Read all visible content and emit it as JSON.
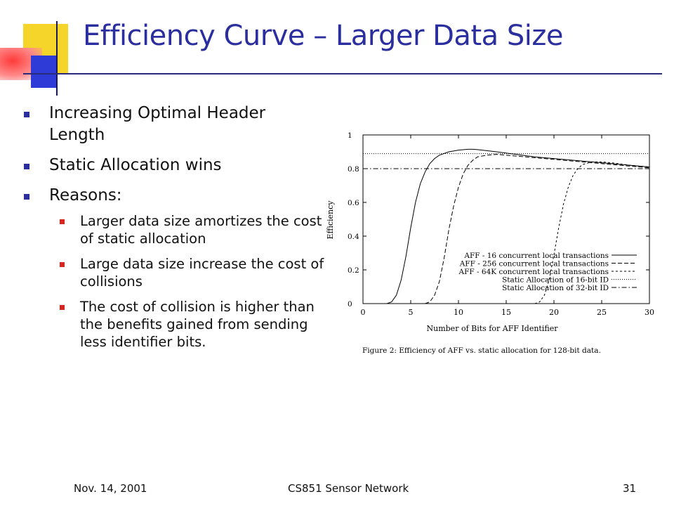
{
  "slide": {
    "title": "Efficiency Curve – Larger Data Size",
    "bullets": [
      {
        "text": "Increasing Optimal Header Length"
      },
      {
        "text": "Static Allocation wins"
      },
      {
        "text": "Reasons:",
        "sub": [
          "Larger data size amortizes the cost of static allocation",
          "Large data size increase the cost of collisions",
          "The cost of collision is higher than the benefits gained from sending less identifier bits."
        ]
      }
    ],
    "footer": {
      "date": "Nov. 14, 2001",
      "center": "CS851 Sensor Network",
      "page": "31"
    }
  },
  "chart_data": {
    "type": "line",
    "title": "",
    "caption": "Figure 2: Efficiency of AFF vs. static allocation for 128-bit data.",
    "xlabel": "Number of Bits for AFF Identifier",
    "ylabel": "Efficiency",
    "xlim": [
      0,
      30
    ],
    "ylim": [
      0,
      1
    ],
    "xticks": [
      0,
      5,
      10,
      15,
      20,
      25,
      30
    ],
    "yticks": [
      0,
      0.2,
      0.4,
      0.6,
      0.8,
      1
    ],
    "ytick_labels": [
      "0",
      "0.2",
      "0.4",
      "0.6",
      "0.8",
      "1"
    ],
    "grid": false,
    "legend_position": "bottom-right",
    "series": [
      {
        "name": "AFF - 16 concurrent local transactions",
        "style": "solid",
        "x": [
          2.5,
          3,
          3.5,
          4,
          4.5,
          5,
          5.5,
          6,
          6.5,
          7,
          7.5,
          8,
          9,
          10,
          11,
          11.5,
          12,
          14,
          16,
          18,
          20,
          22,
          24,
          26,
          28,
          30
        ],
        "y": [
          0.0,
          0.01,
          0.05,
          0.14,
          0.28,
          0.45,
          0.6,
          0.71,
          0.78,
          0.83,
          0.86,
          0.88,
          0.9,
          0.91,
          0.915,
          0.915,
          0.913,
          0.9,
          0.885,
          0.87,
          0.86,
          0.85,
          0.84,
          0.83,
          0.82,
          0.81
        ]
      },
      {
        "name": "AFF - 256 concurrent local transactions",
        "style": "dashed",
        "x": [
          6.5,
          7,
          7.5,
          8,
          8.5,
          9,
          9.5,
          10,
          10.5,
          11,
          11.5,
          12,
          13,
          14,
          15,
          16,
          18,
          20,
          22,
          24,
          26,
          28,
          30
        ],
        "y": [
          0.0,
          0.01,
          0.05,
          0.13,
          0.27,
          0.44,
          0.58,
          0.69,
          0.77,
          0.82,
          0.85,
          0.87,
          0.88,
          0.885,
          0.88,
          0.875,
          0.865,
          0.855,
          0.845,
          0.835,
          0.825,
          0.815,
          0.805
        ]
      },
      {
        "name": "AFF - 64K concurrent local transactions",
        "style": "shortdash",
        "x": [
          18,
          18.5,
          19,
          19.5,
          20,
          20.5,
          21,
          21.5,
          22,
          22.5,
          23,
          24,
          25,
          26,
          28,
          30
        ],
        "y": [
          0.0,
          0.01,
          0.05,
          0.14,
          0.29,
          0.45,
          0.59,
          0.69,
          0.76,
          0.8,
          0.825,
          0.84,
          0.84,
          0.835,
          0.82,
          0.81
        ]
      },
      {
        "name": "Static Allocation of 16-bit ID",
        "style": "dotted",
        "x": [
          0,
          30
        ],
        "y": [
          0.889,
          0.889
        ]
      },
      {
        "name": "Static Allocation of 32-bit ID",
        "style": "dashdot",
        "x": [
          0,
          30
        ],
        "y": [
          0.8,
          0.8
        ]
      }
    ],
    "colors": {
      "lines": "#000000",
      "title": "#2b2e9f",
      "bullet_l1": "#2b2e9f",
      "bullet_l2": "#d8261e"
    }
  }
}
